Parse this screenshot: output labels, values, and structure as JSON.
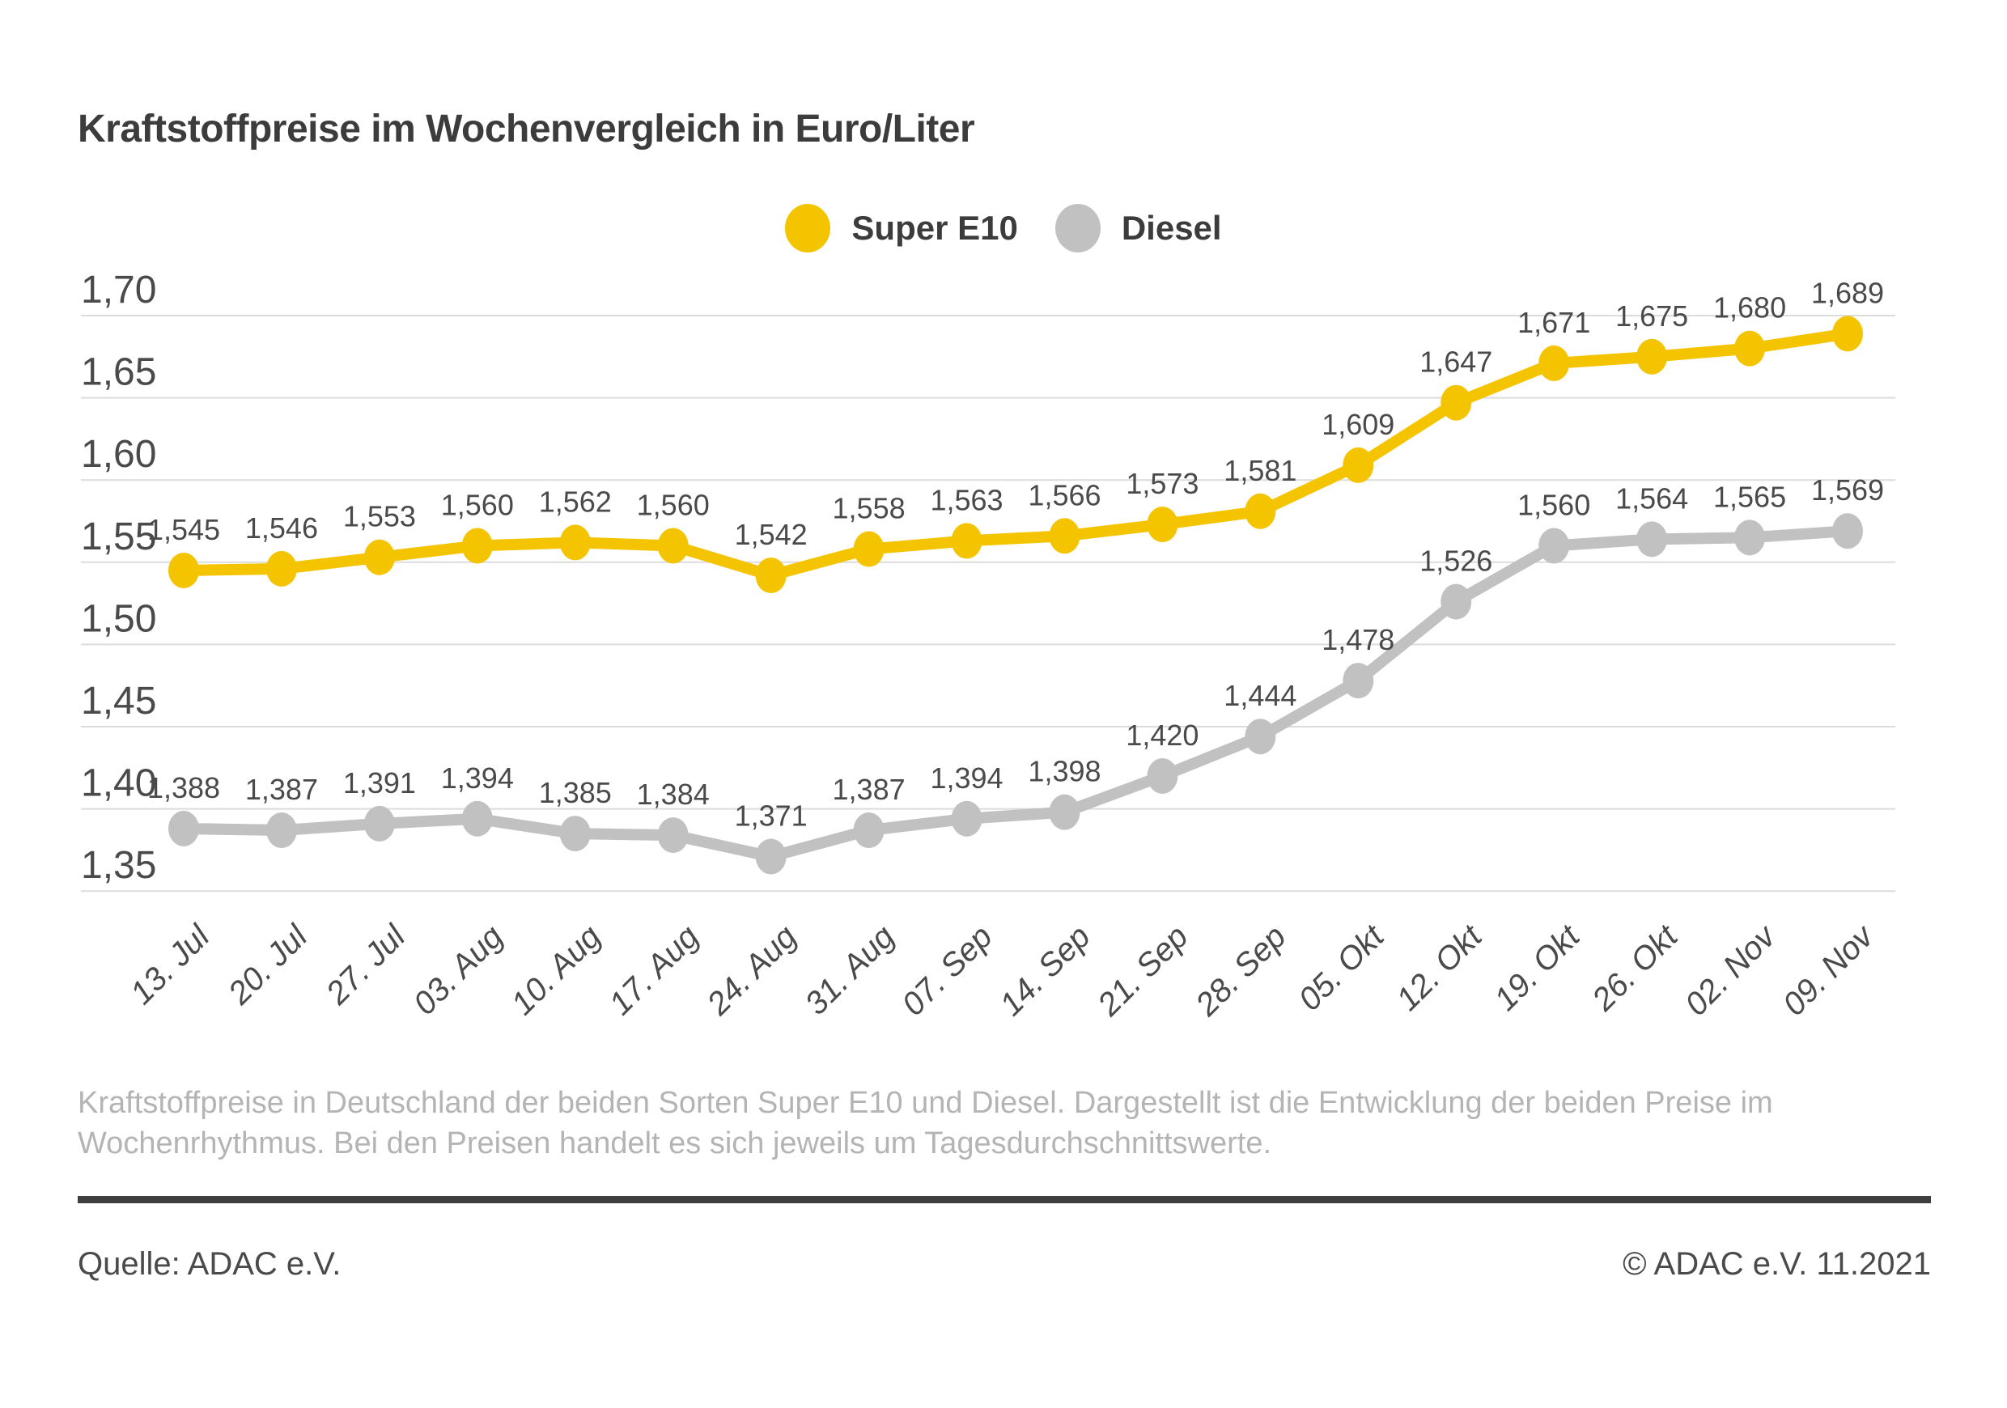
{
  "title": "Kraftstoffpreise im Wochenvergleich in Euro/Liter",
  "legend": [
    {
      "label": "Super E10",
      "color": "#F5C400"
    },
    {
      "label": "Diesel",
      "color": "#C1C1C1"
    }
  ],
  "chart_data": {
    "type": "line",
    "title": "Kraftstoffpreise im Wochenvergleich in Euro/Liter",
    "categories": [
      "13. Jul",
      "20. Jul",
      "27. Jul",
      "03. Aug",
      "10. Aug",
      "17. Aug",
      "24. Aug",
      "31. Aug",
      "07. Sep",
      "14. Sep",
      "21. Sep",
      "28. Sep",
      "05. Okt",
      "12. Okt",
      "19. Okt",
      "26. Okt",
      "02. Nov",
      "09. Nov"
    ],
    "series": [
      {
        "name": "Super E10",
        "color": "#F5C400",
        "values": [
          1.545,
          1.546,
          1.553,
          1.56,
          1.562,
          1.56,
          1.542,
          1.558,
          1.563,
          1.566,
          1.573,
          1.581,
          1.609,
          1.647,
          1.671,
          1.675,
          1.68,
          1.689
        ]
      },
      {
        "name": "Diesel",
        "color": "#C1C1C1",
        "values": [
          1.388,
          1.387,
          1.391,
          1.394,
          1.385,
          1.384,
          1.371,
          1.387,
          1.394,
          1.398,
          1.42,
          1.444,
          1.478,
          1.526,
          1.56,
          1.564,
          1.565,
          1.569
        ]
      }
    ],
    "xlabel": "",
    "ylabel": "Euro/Liter",
    "ylim": [
      1.35,
      1.7
    ],
    "yticks": [
      1.7,
      1.65,
      1.6,
      1.55,
      1.5,
      1.45,
      1.4,
      1.35
    ],
    "grid": true,
    "legend_position": "top",
    "decimal_separator": ",",
    "data_labels": true
  },
  "description": {
    "line1": "Kraftstoffpreise in Deutschland der beiden Sorten Super E10 und Diesel. Dargestellt ist die Entwicklung der beiden Preise im",
    "line2": "Wochenrhythmus. Bei den Preisen handelt es sich jeweils um Tagesdurchschnittswerte."
  },
  "footer": {
    "source": "Quelle: ADAC e.V.",
    "copyright": "© ADAC e.V. 11.2021"
  },
  "colors": {
    "grid": "#DCDCDC",
    "axis_text": "#4A4A4A",
    "data_label_text": "#4A4A4A",
    "title_text": "#3C3C3C",
    "muted_text": "#B4B4B4",
    "rule": "#3F3F3F"
  }
}
